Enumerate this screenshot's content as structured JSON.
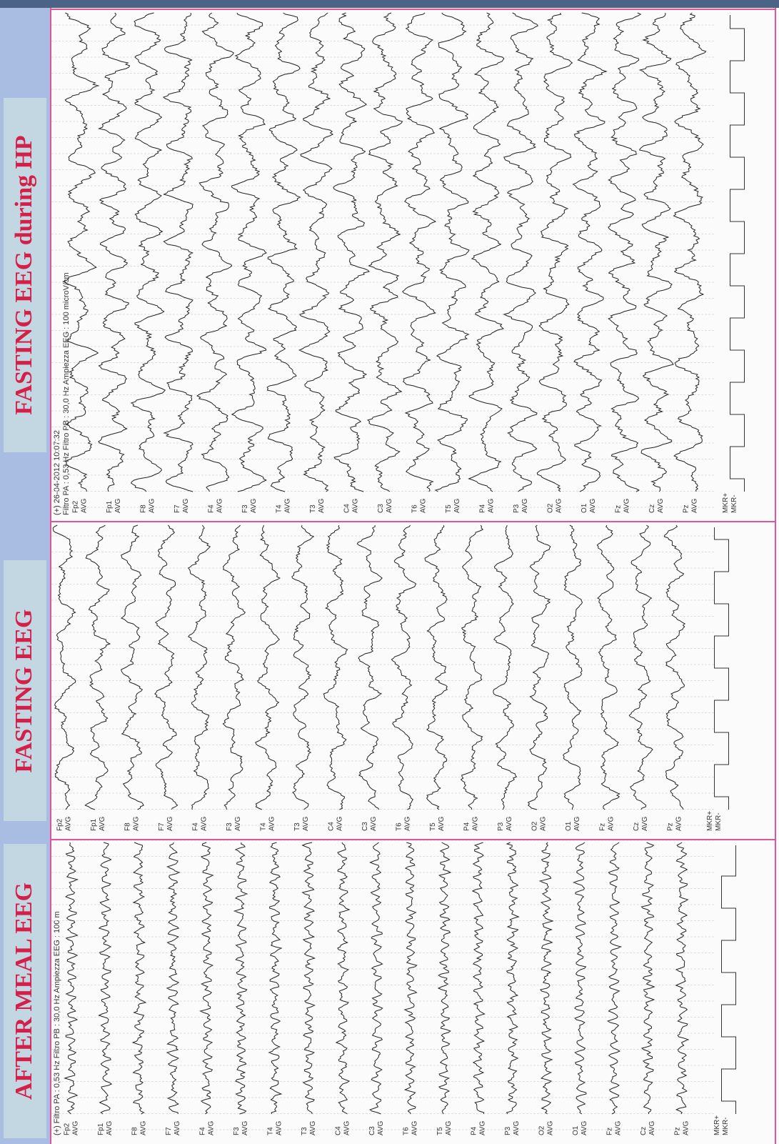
{
  "titles": [
    "AFTER  MEAL  EEG",
    "FASTING  EEG",
    "FASTING EEG during HP"
  ],
  "headers": {
    "after_meal": "(+)   Filtro PA : 0,53 Hz  Filtro PB : 30,0 Hz  Ampiezza EEG : 100 m",
    "fasting_hp_line1": "(+)   26-04-2012 10:07:32",
    "fasting_hp_line2": "Filtro PA : 0,53 Hz  Filtro PB : 30,0 Hz  Ampiezza EEG : 100 microV/cm"
  },
  "channels": [
    {
      "name": "Fp2",
      "ref": "AVG"
    },
    {
      "name": "Fp1",
      "ref": "AVG"
    },
    {
      "name": "F8",
      "ref": "AVG"
    },
    {
      "name": "F7",
      "ref": "AVG"
    },
    {
      "name": "F4",
      "ref": "AVG"
    },
    {
      "name": "F3",
      "ref": "AVG"
    },
    {
      "name": "T4",
      "ref": "AVG"
    },
    {
      "name": "T3",
      "ref": "AVG"
    },
    {
      "name": "C4",
      "ref": "AVG"
    },
    {
      "name": "C3",
      "ref": "AVG"
    },
    {
      "name": "T6",
      "ref": "AVG"
    },
    {
      "name": "T5",
      "ref": "AVG"
    },
    {
      "name": "P4",
      "ref": "AVG"
    },
    {
      "name": "P3",
      "ref": "AVG"
    },
    {
      "name": "O2",
      "ref": "AVG"
    },
    {
      "name": "O1",
      "ref": "AVG"
    },
    {
      "name": "Fz",
      "ref": "AVG"
    },
    {
      "name": "Cz",
      "ref": "AVG"
    },
    {
      "name": "Pz",
      "ref": "AVG"
    }
  ],
  "markers": [
    "MKR+",
    "MKR-"
  ]
}
